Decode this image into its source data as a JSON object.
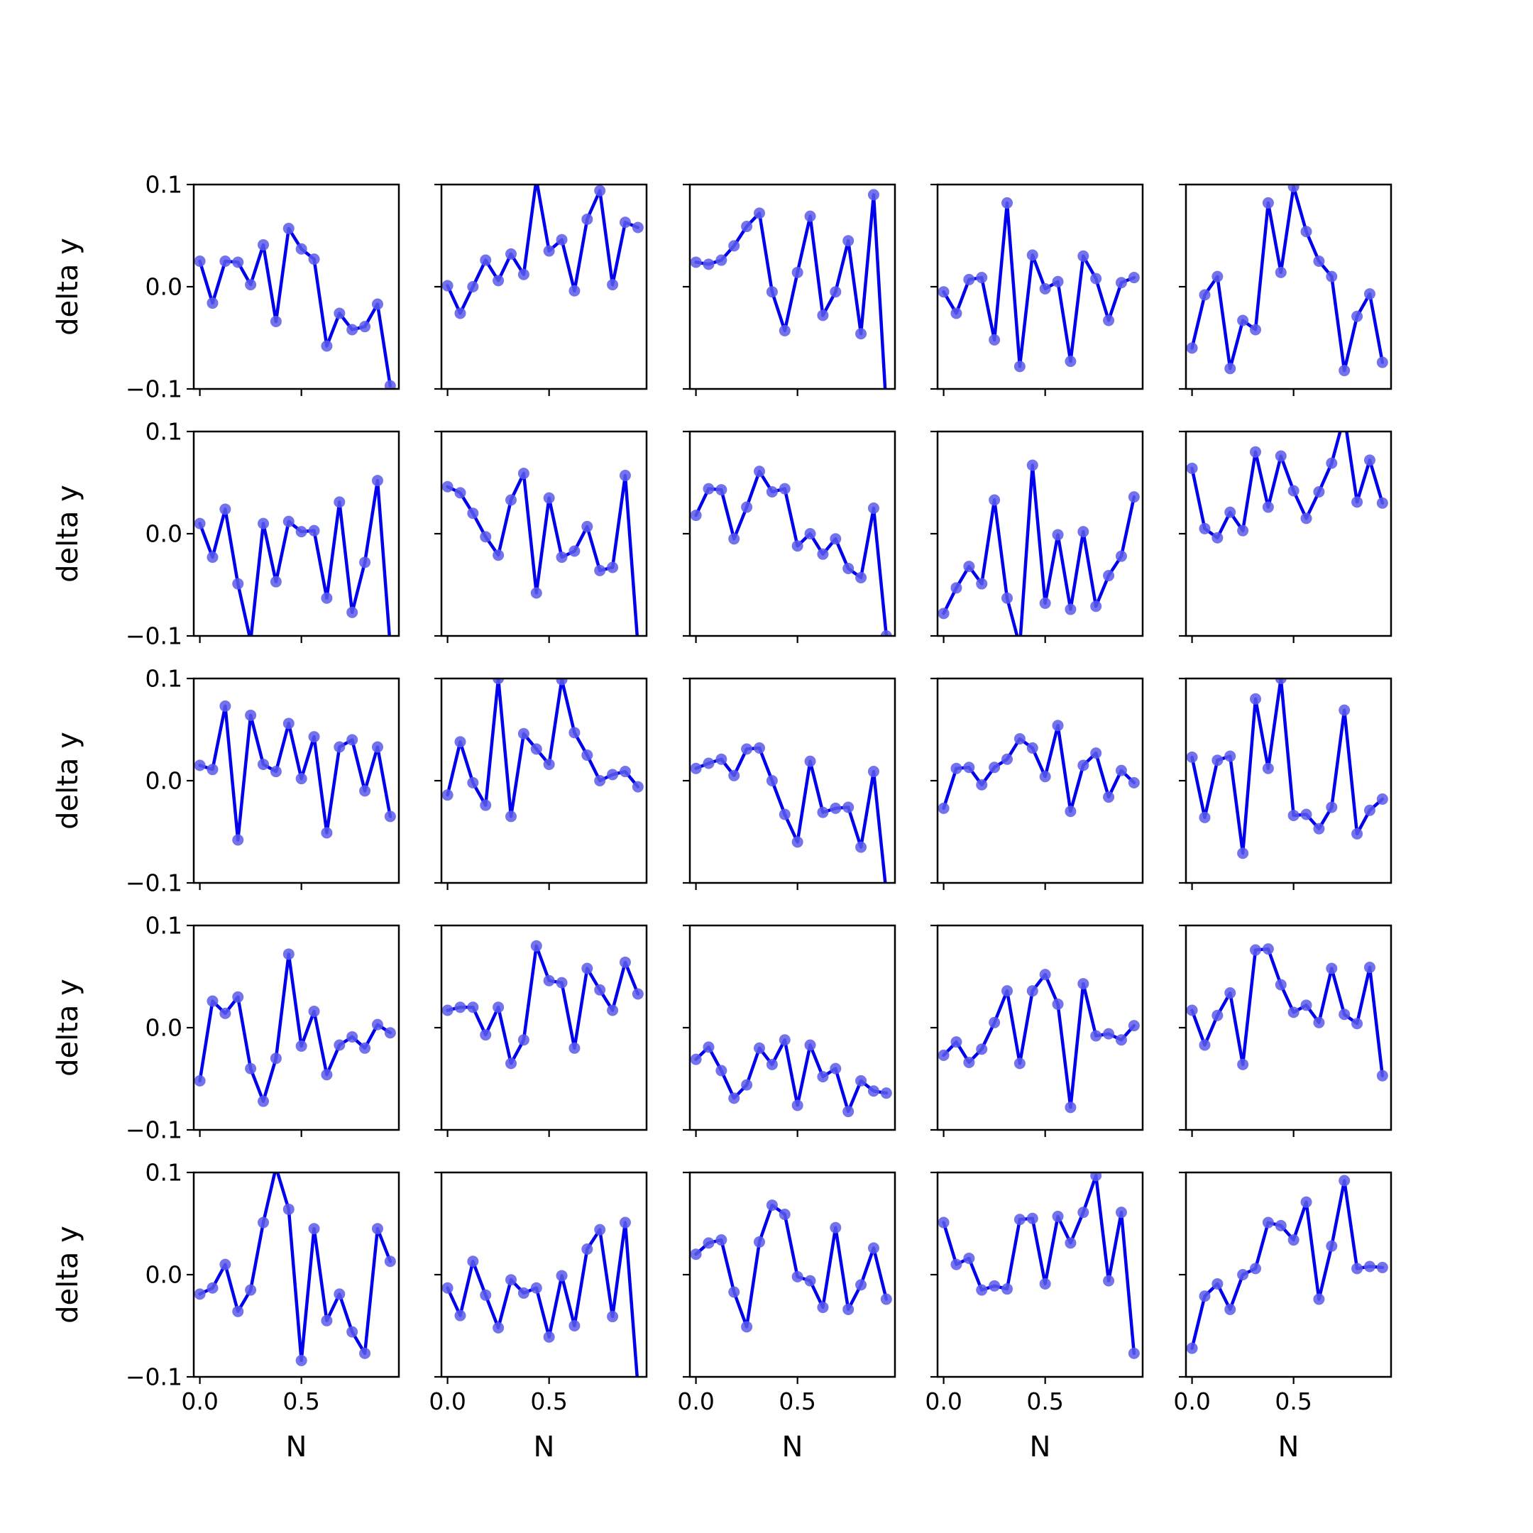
{
  "colors": {
    "line": "#0000ee",
    "marker": "#5b5bea",
    "axes": "#000000",
    "background": "#ffffff"
  },
  "chart_data": {
    "type": "line",
    "layout": "5x5 grid of small multiples, shared x and y axes",
    "xlabel": "N",
    "ylabel": "delta y",
    "xlim": [
      -0.03,
      0.98
    ],
    "ylim": [
      -0.1,
      0.1
    ],
    "x_ticks": [
      0.0,
      0.5
    ],
    "x_tick_labels": [
      "0.0",
      "0.5"
    ],
    "y_ticks": [
      -0.1,
      0.0,
      0.1
    ],
    "y_tick_labels": [
      "−0.1",
      "0.0",
      "0.1"
    ],
    "x": [
      0.0,
      0.0625,
      0.125,
      0.1875,
      0.25,
      0.3125,
      0.375,
      0.4375,
      0.5,
      0.5625,
      0.625,
      0.6875,
      0.75,
      0.8125,
      0.875,
      0.9375
    ],
    "panels": [
      {
        "row": 0,
        "col": 0,
        "values": [
          0.025,
          -0.016,
          0.025,
          0.024,
          0.002,
          0.041,
          -0.034,
          0.057,
          0.037,
          0.027,
          -0.058,
          -0.026,
          -0.042,
          -0.039,
          -0.017,
          -0.097
        ]
      },
      {
        "row": 0,
        "col": 1,
        "values": [
          0.001,
          -0.026,
          0.0,
          0.026,
          0.006,
          0.032,
          0.012,
          0.105,
          0.035,
          0.046,
          -0.004,
          0.066,
          0.094,
          0.002,
          0.063,
          0.058
        ]
      },
      {
        "row": 0,
        "col": 2,
        "values": [
          0.024,
          0.022,
          0.026,
          0.04,
          0.059,
          0.072,
          -0.005,
          -0.043,
          0.014,
          0.069,
          -0.028,
          -0.005,
          0.045,
          -0.046,
          0.09,
          -0.12
        ]
      },
      {
        "row": 0,
        "col": 3,
        "values": [
          -0.005,
          -0.026,
          0.007,
          0.009,
          -0.052,
          0.082,
          -0.078,
          0.031,
          -0.002,
          0.005,
          -0.073,
          0.03,
          0.008,
          -0.033,
          0.004,
          0.009
        ]
      },
      {
        "row": 0,
        "col": 4,
        "values": [
          -0.06,
          -0.008,
          0.01,
          -0.08,
          -0.033,
          -0.042,
          0.082,
          0.014,
          0.098,
          0.054,
          0.025,
          0.01,
          -0.082,
          -0.029,
          -0.007,
          -0.074
        ]
      },
      {
        "row": 1,
        "col": 0,
        "values": [
          0.01,
          -0.023,
          0.024,
          -0.049,
          -0.105,
          0.01,
          -0.047,
          0.012,
          0.002,
          0.003,
          -0.063,
          0.031,
          -0.077,
          -0.028,
          0.052,
          -0.11
        ]
      },
      {
        "row": 1,
        "col": 1,
        "values": [
          0.046,
          0.04,
          0.02,
          -0.003,
          -0.021,
          0.033,
          0.059,
          -0.058,
          0.035,
          -0.023,
          -0.017,
          0.007,
          -0.036,
          -0.033,
          0.057,
          -0.11
        ]
      },
      {
        "row": 1,
        "col": 2,
        "values": [
          0.018,
          0.044,
          0.043,
          -0.005,
          0.026,
          0.061,
          0.041,
          0.044,
          -0.012,
          0.0,
          -0.02,
          -0.005,
          -0.034,
          -0.043,
          0.025,
          -0.1
        ]
      },
      {
        "row": 1,
        "col": 3,
        "values": [
          -0.078,
          -0.053,
          -0.032,
          -0.049,
          0.033,
          -0.063,
          -0.11,
          0.067,
          -0.068,
          -0.001,
          -0.074,
          0.002,
          -0.071,
          -0.041,
          -0.022,
          0.036
        ]
      },
      {
        "row": 1,
        "col": 4,
        "values": [
          0.064,
          0.005,
          -0.004,
          0.021,
          0.003,
          0.08,
          0.026,
          0.076,
          0.042,
          0.015,
          0.041,
          0.069,
          0.115,
          0.031,
          0.072,
          0.03
        ]
      },
      {
        "row": 2,
        "col": 0,
        "values": [
          0.015,
          0.011,
          0.073,
          -0.058,
          0.064,
          0.016,
          0.009,
          0.056,
          0.002,
          0.043,
          -0.051,
          0.033,
          0.04,
          -0.01,
          0.033,
          -0.035
        ]
      },
      {
        "row": 2,
        "col": 1,
        "values": [
          -0.014,
          0.038,
          -0.002,
          -0.024,
          0.1,
          -0.035,
          0.046,
          0.031,
          0.016,
          0.099,
          0.047,
          0.025,
          0.0,
          0.006,
          0.009,
          -0.006
        ]
      },
      {
        "row": 2,
        "col": 2,
        "values": [
          0.012,
          0.017,
          0.021,
          0.005,
          0.031,
          0.032,
          0.0,
          -0.033,
          -0.06,
          0.019,
          -0.031,
          -0.027,
          -0.026,
          -0.065,
          0.009,
          -0.11
        ]
      },
      {
        "row": 2,
        "col": 3,
        "values": [
          -0.027,
          0.012,
          0.013,
          -0.004,
          0.013,
          0.021,
          0.041,
          0.032,
          0.004,
          0.054,
          -0.03,
          0.015,
          0.027,
          -0.016,
          0.01,
          -0.002
        ]
      },
      {
        "row": 2,
        "col": 4,
        "values": [
          0.023,
          -0.036,
          0.02,
          0.024,
          -0.071,
          0.08,
          0.012,
          0.1,
          -0.034,
          -0.033,
          -0.047,
          -0.026,
          0.069,
          -0.052,
          -0.029,
          -0.018
        ]
      },
      {
        "row": 3,
        "col": 0,
        "values": [
          -0.052,
          0.026,
          0.014,
          0.03,
          -0.04,
          -0.072,
          -0.03,
          0.072,
          -0.018,
          0.016,
          -0.046,
          -0.017,
          -0.009,
          -0.02,
          0.003,
          -0.005
        ]
      },
      {
        "row": 3,
        "col": 1,
        "values": [
          0.017,
          0.02,
          0.02,
          -0.007,
          0.02,
          -0.035,
          -0.012,
          0.08,
          0.046,
          0.044,
          -0.02,
          0.058,
          0.037,
          0.017,
          0.064,
          0.033
        ]
      },
      {
        "row": 3,
        "col": 2,
        "values": [
          -0.031,
          -0.019,
          -0.042,
          -0.069,
          -0.056,
          -0.02,
          -0.036,
          -0.012,
          -0.076,
          -0.017,
          -0.048,
          -0.04,
          -0.082,
          -0.052,
          -0.062,
          -0.064
        ]
      },
      {
        "row": 3,
        "col": 3,
        "values": [
          -0.027,
          -0.014,
          -0.034,
          -0.021,
          0.005,
          0.036,
          -0.035,
          0.036,
          0.052,
          0.023,
          -0.078,
          0.043,
          -0.008,
          -0.006,
          -0.012,
          0.002
        ]
      },
      {
        "row": 3,
        "col": 4,
        "values": [
          0.017,
          -0.017,
          0.012,
          0.034,
          -0.036,
          0.076,
          0.077,
          0.042,
          0.015,
          0.022,
          0.005,
          0.058,
          0.013,
          0.004,
          0.059,
          -0.047
        ]
      },
      {
        "row": 4,
        "col": 0,
        "values": [
          -0.019,
          -0.013,
          0.01,
          -0.036,
          -0.015,
          0.051,
          0.105,
          0.064,
          -0.084,
          0.045,
          -0.045,
          -0.019,
          -0.056,
          -0.077,
          0.045,
          0.013
        ]
      },
      {
        "row": 4,
        "col": 1,
        "values": [
          -0.013,
          -0.04,
          0.013,
          -0.02,
          -0.052,
          -0.005,
          -0.018,
          -0.013,
          -0.061,
          -0.001,
          -0.05,
          0.025,
          0.044,
          -0.041,
          0.051,
          -0.11
        ]
      },
      {
        "row": 4,
        "col": 2,
        "values": [
          0.02,
          0.031,
          0.034,
          -0.017,
          -0.051,
          0.032,
          0.068,
          0.059,
          -0.002,
          -0.006,
          -0.032,
          0.046,
          -0.034,
          -0.01,
          0.026,
          -0.024
        ]
      },
      {
        "row": 4,
        "col": 3,
        "values": [
          0.051,
          0.01,
          0.016,
          -0.015,
          -0.011,
          -0.014,
          0.054,
          0.055,
          -0.009,
          0.057,
          0.031,
          0.061,
          0.097,
          -0.006,
          0.061,
          -0.077
        ]
      },
      {
        "row": 4,
        "col": 4,
        "values": [
          -0.072,
          -0.021,
          -0.009,
          -0.034,
          0.0,
          0.006,
          0.051,
          0.048,
          0.034,
          0.071,
          -0.024,
          0.028,
          0.092,
          0.006,
          0.008,
          0.007
        ]
      }
    ]
  }
}
